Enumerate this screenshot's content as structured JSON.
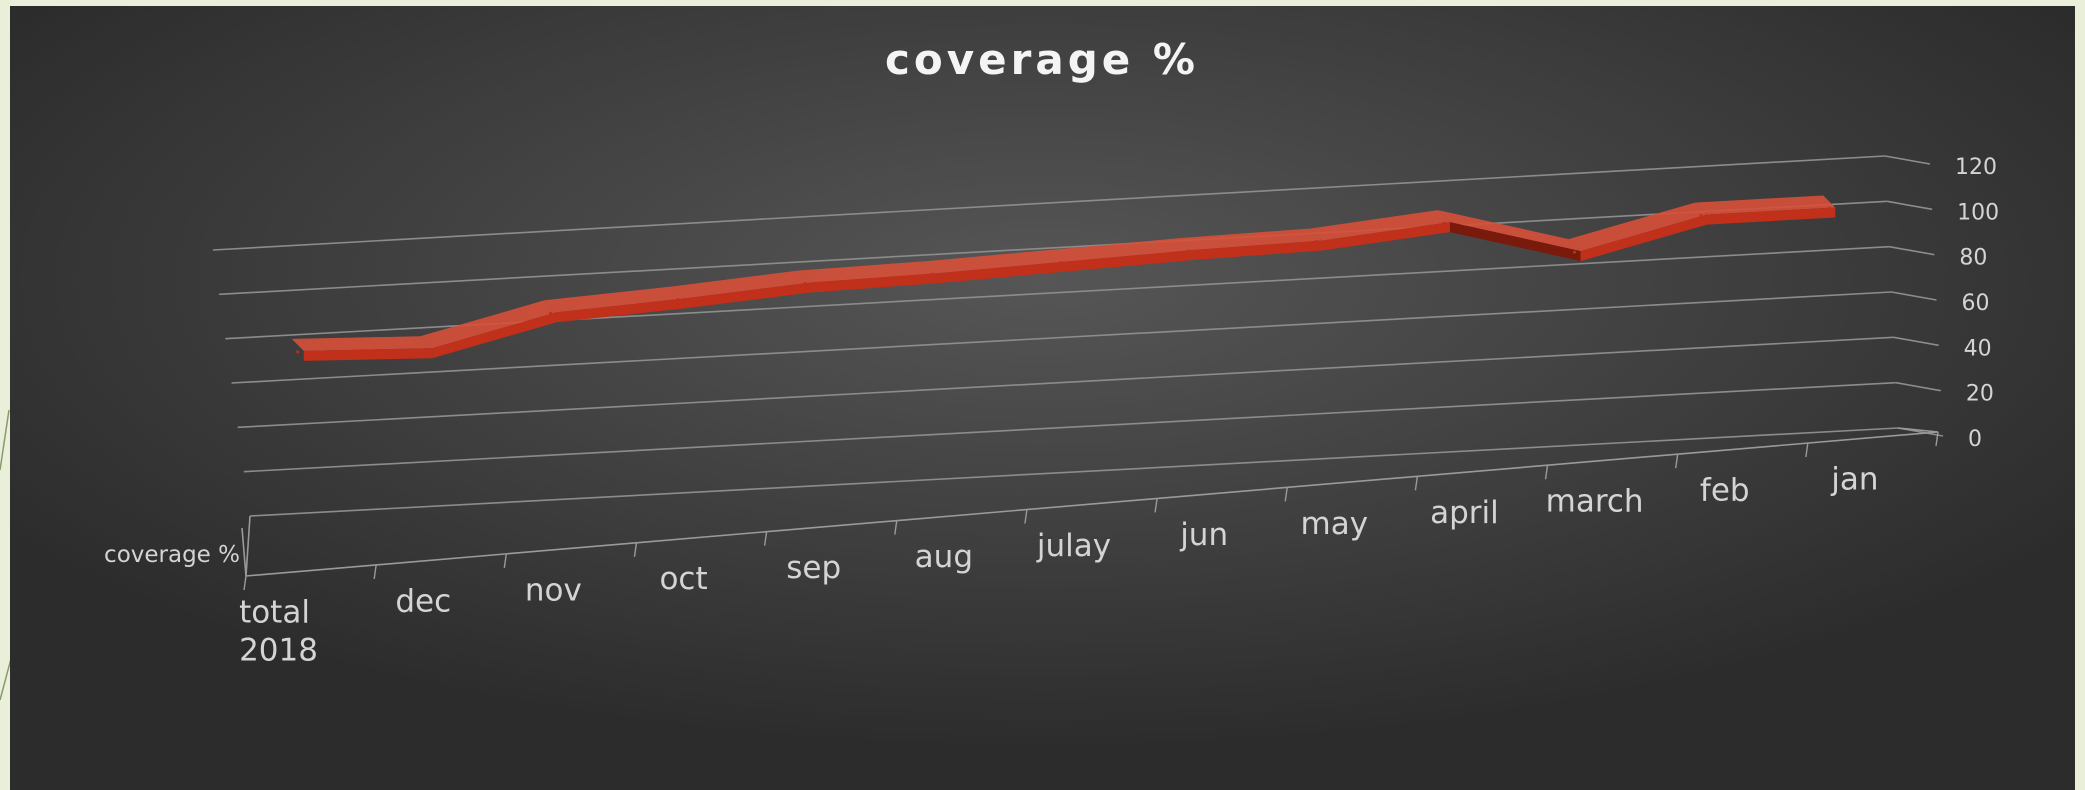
{
  "chart_data": {
    "type": "line",
    "title": "coverage %",
    "categories": [
      "total 2018",
      "dec",
      "nov",
      "oct",
      "sep",
      "aug",
      "julay",
      "jun",
      "may",
      "april",
      "march",
      "feb",
      "jan"
    ],
    "category_lines": [
      [
        "total",
        "2018"
      ],
      [
        "dec"
      ],
      [
        "nov"
      ],
      [
        "oct"
      ],
      [
        "sep"
      ],
      [
        "aug"
      ],
      [
        "julay"
      ],
      [
        "jun"
      ],
      [
        "may"
      ],
      [
        "april"
      ],
      [
        "march"
      ],
      [
        "feb"
      ],
      [
        "jan"
      ]
    ],
    "series": [
      {
        "name": "coverage %",
        "values": [
          72,
          70,
          83,
          86,
          90,
          91,
          93,
          95,
          96,
          101,
          85,
          98,
          98
        ]
      }
    ],
    "y_ticks": [
      "0",
      "20",
      "40",
      "60",
      "80",
      "100",
      "120"
    ],
    "ylim": [
      0,
      120
    ],
    "grid": true,
    "legend": "none",
    "colors": {
      "line": "#c0301a",
      "line_top": "#d8503a",
      "line_dark": "#7a1a0c"
    }
  }
}
